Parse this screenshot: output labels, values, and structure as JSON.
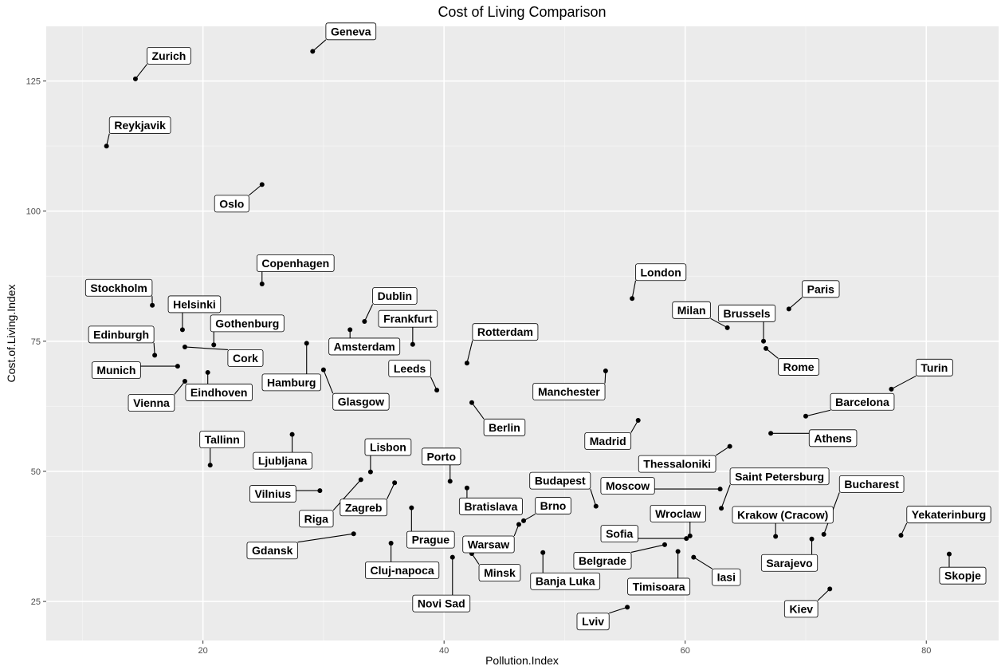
{
  "chart_data": {
    "type": "scatter",
    "title": "Cost of Living Comparison",
    "xlabel": "Pollution.Index",
    "ylabel": "Cost.of.Living.Index",
    "xlim": [
      7,
      86
    ],
    "ylim": [
      17.5,
      135.5
    ],
    "x_ticks": [
      20,
      40,
      60,
      80
    ],
    "y_ticks": [
      25,
      50,
      75,
      100,
      125
    ],
    "grid": true,
    "background": "#ebebeb",
    "point_color": "#000000",
    "points": [
      {
        "label": "Geneva",
        "x": 29.1,
        "y": 130.7
      },
      {
        "label": "Zurich",
        "x": 14.4,
        "y": 125.4
      },
      {
        "label": "Reykjavik",
        "x": 12.0,
        "y": 112.5
      },
      {
        "label": "Oslo",
        "x": 24.9,
        "y": 105.1
      },
      {
        "label": "Copenhagen",
        "x": 24.9,
        "y": 86.0
      },
      {
        "label": "Stockholm",
        "x": 15.8,
        "y": 81.9
      },
      {
        "label": "Helsinki",
        "x": 18.3,
        "y": 77.2
      },
      {
        "label": "Gothenburg",
        "x": 20.9,
        "y": 74.3
      },
      {
        "label": "Edinburgh",
        "x": 16.0,
        "y": 72.3
      },
      {
        "label": "Cork",
        "x": 18.5,
        "y": 73.9
      },
      {
        "label": "Munich",
        "x": 17.9,
        "y": 70.2
      },
      {
        "label": "Vienna",
        "x": 18.5,
        "y": 67.3
      },
      {
        "label": "Eindhoven",
        "x": 20.4,
        "y": 69.0
      },
      {
        "label": "Tallinn",
        "x": 20.6,
        "y": 51.2
      },
      {
        "label": "Ljubljana",
        "x": 27.4,
        "y": 57.1
      },
      {
        "label": "Hamburg",
        "x": 28.6,
        "y": 74.6
      },
      {
        "label": "Glasgow",
        "x": 30.0,
        "y": 69.5
      },
      {
        "label": "Amsterdam",
        "x": 32.2,
        "y": 77.2
      },
      {
        "label": "Dublin",
        "x": 33.4,
        "y": 78.8
      },
      {
        "label": "Frankfurt",
        "x": 37.4,
        "y": 74.4
      },
      {
        "label": "Vilnius",
        "x": 29.7,
        "y": 46.3
      },
      {
        "label": "Riga",
        "x": 33.1,
        "y": 48.4
      },
      {
        "label": "Lisbon",
        "x": 33.9,
        "y": 49.9
      },
      {
        "label": "Zagreb",
        "x": 35.9,
        "y": 47.8
      },
      {
        "label": "Gdansk",
        "x": 32.5,
        "y": 38.0
      },
      {
        "label": "Cluj-napoca",
        "x": 35.6,
        "y": 36.2
      },
      {
        "label": "Novi Sad",
        "x": 40.7,
        "y": 33.5
      },
      {
        "label": "Prague",
        "x": 37.3,
        "y": 43.0
      },
      {
        "label": "Porto",
        "x": 40.5,
        "y": 48.1
      },
      {
        "label": "Rotterdam",
        "x": 41.9,
        "y": 70.8
      },
      {
        "label": "Leeds",
        "x": 39.4,
        "y": 65.6
      },
      {
        "label": "Berlin",
        "x": 42.3,
        "y": 63.2
      },
      {
        "label": "Bratislava",
        "x": 41.9,
        "y": 46.8
      },
      {
        "label": "Warsaw",
        "x": 46.2,
        "y": 39.8
      },
      {
        "label": "Brno",
        "x": 46.6,
        "y": 40.5
      },
      {
        "label": "Minsk",
        "x": 42.3,
        "y": 34.2
      },
      {
        "label": "Banja Luka",
        "x": 48.2,
        "y": 34.4
      },
      {
        "label": "Budapest",
        "x": 52.6,
        "y": 43.3
      },
      {
        "label": "Manchester",
        "x": 53.4,
        "y": 69.3
      },
      {
        "label": "London",
        "x": 55.6,
        "y": 83.2
      },
      {
        "label": "Madrid",
        "x": 56.1,
        "y": 59.8
      },
      {
        "label": "Moscow",
        "x": 62.9,
        "y": 46.6
      },
      {
        "label": "Lviv",
        "x": 55.2,
        "y": 23.9
      },
      {
        "label": "Belgrade",
        "x": 58.3,
        "y": 35.9
      },
      {
        "label": "Sofia",
        "x": 60.1,
        "y": 37.1
      },
      {
        "label": "Wroclaw",
        "x": 60.4,
        "y": 37.6
      },
      {
        "label": "Timisoara",
        "x": 59.4,
        "y": 34.6
      },
      {
        "label": "Iasi",
        "x": 60.7,
        "y": 33.5
      },
      {
        "label": "Thessaloniki",
        "x": 63.7,
        "y": 54.8
      },
      {
        "label": "Saint Petersburg",
        "x": 63.0,
        "y": 42.9
      },
      {
        "label": "Milan",
        "x": 63.5,
        "y": 77.6
      },
      {
        "label": "Brussels",
        "x": 66.5,
        "y": 75.0
      },
      {
        "label": "Rome",
        "x": 66.7,
        "y": 73.6
      },
      {
        "label": "Paris",
        "x": 68.6,
        "y": 81.2
      },
      {
        "label": "Athens",
        "x": 67.1,
        "y": 57.3
      },
      {
        "label": "Krakow (Cracow)",
        "x": 67.5,
        "y": 37.5
      },
      {
        "label": "Sarajevo",
        "x": 70.5,
        "y": 37.0
      },
      {
        "label": "Bucharest",
        "x": 71.5,
        "y": 37.9
      },
      {
        "label": "Barcelona",
        "x": 70.0,
        "y": 60.6
      },
      {
        "label": "Turin",
        "x": 77.1,
        "y": 65.8
      },
      {
        "label": "Kiev",
        "x": 72.0,
        "y": 27.4
      },
      {
        "label": "Yekaterinburg",
        "x": 77.9,
        "y": 37.7
      },
      {
        "label": "Skopje",
        "x": 81.9,
        "y": 34.1
      }
    ]
  }
}
